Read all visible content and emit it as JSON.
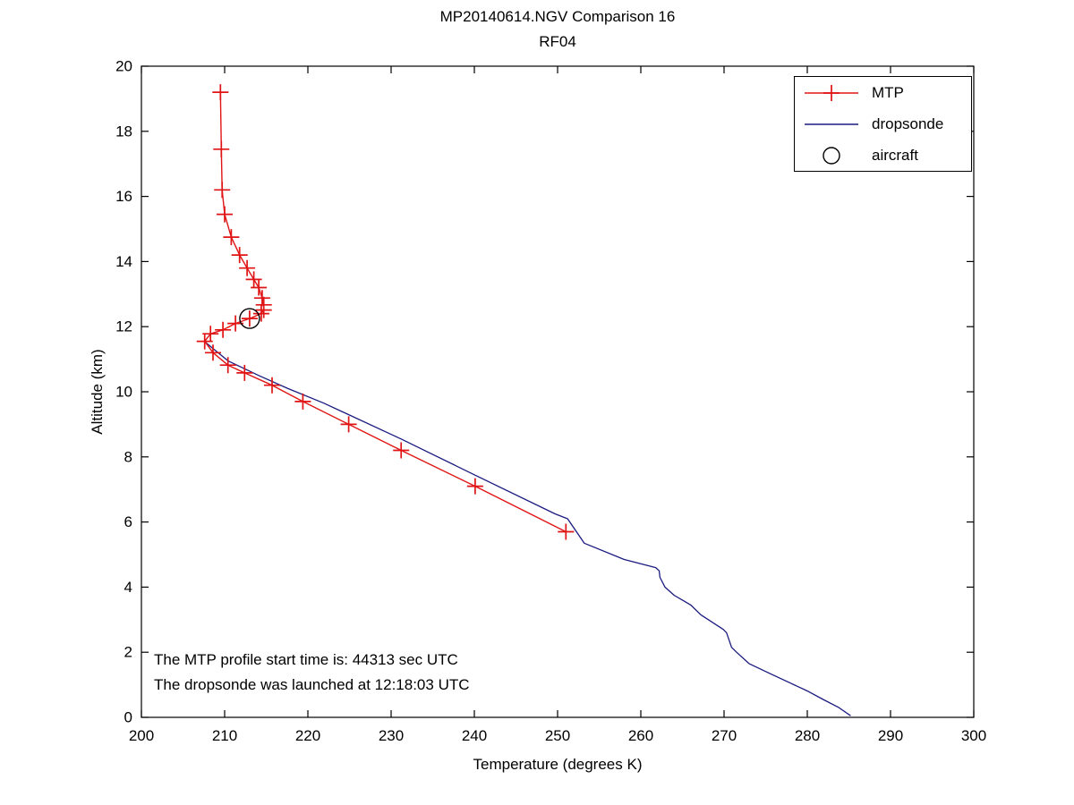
{
  "figure": {
    "title_line1": "MP20140614.NGV Comparison 16",
    "title_line2": "RF04",
    "annotations": [
      "The MTP profile start time is: 44313 sec UTC",
      "The dropsonde was launched at 12:18:03 UTC"
    ]
  },
  "legend": {
    "items": [
      {
        "label": "MTP",
        "swatch": "line-plus",
        "color": "#e01414"
      },
      {
        "label": "dropsonde",
        "swatch": "line",
        "color": "#1a1a80"
      },
      {
        "label": "aircraft",
        "swatch": "circle",
        "color": "#000000"
      }
    ]
  },
  "chart_data": {
    "type": "line",
    "title": "MP20140614.NGV Comparison 16 — RF04",
    "xlabel": "Temperature (degrees K)",
    "ylabel": "Altitude (km)",
    "xlim": [
      200,
      300
    ],
    "ylim": [
      0,
      20
    ],
    "xticks": [
      200,
      210,
      220,
      230,
      240,
      250,
      260,
      270,
      280,
      290,
      300
    ],
    "yticks": [
      0,
      2,
      4,
      6,
      8,
      10,
      12,
      14,
      16,
      18,
      20
    ],
    "grid": false,
    "legend_position": "upper-right",
    "series": [
      {
        "name": "MTP",
        "color": "#e01414",
        "marker": "plus",
        "points": [
          [
            209.5,
            19.2
          ],
          [
            209.6,
            17.45
          ],
          [
            209.7,
            16.2
          ],
          [
            210.0,
            15.45
          ],
          [
            210.8,
            14.75
          ],
          [
            211.8,
            14.2
          ],
          [
            212.7,
            13.8
          ],
          [
            213.5,
            13.45
          ],
          [
            214.1,
            13.2
          ],
          [
            214.5,
            12.88
          ],
          [
            214.7,
            12.67
          ],
          [
            214.7,
            12.51
          ],
          [
            214.4,
            12.4
          ],
          [
            213.0,
            12.25
          ],
          [
            211.3,
            12.1
          ],
          [
            209.8,
            11.9
          ],
          [
            208.3,
            11.78
          ],
          [
            207.6,
            11.55
          ],
          [
            208.6,
            11.2
          ],
          [
            210.4,
            10.82
          ],
          [
            212.4,
            10.58
          ],
          [
            215.7,
            10.2
          ],
          [
            219.4,
            9.7
          ],
          [
            224.9,
            9.0
          ],
          [
            231.2,
            8.2
          ],
          [
            240.1,
            7.1
          ],
          [
            251.0,
            5.7
          ]
        ]
      },
      {
        "name": "dropsonde",
        "color": "#1a1a80",
        "marker": "none",
        "points": [
          [
            207.7,
            11.52
          ],
          [
            210.4,
            10.95
          ],
          [
            214.1,
            10.5
          ],
          [
            217.6,
            10.1
          ],
          [
            221.9,
            9.65
          ],
          [
            231.2,
            8.55
          ],
          [
            240.0,
            7.45
          ],
          [
            249.7,
            6.25
          ],
          [
            251.2,
            6.1
          ],
          [
            253.2,
            5.35
          ],
          [
            258.0,
            4.85
          ],
          [
            261.8,
            4.6
          ],
          [
            262.2,
            4.5
          ],
          [
            262.3,
            4.3
          ],
          [
            262.9,
            4.0
          ],
          [
            264.0,
            3.75
          ],
          [
            266.0,
            3.45
          ],
          [
            267.2,
            3.15
          ],
          [
            269.9,
            2.7
          ],
          [
            270.3,
            2.6
          ],
          [
            270.9,
            2.15
          ],
          [
            271.5,
            2.0
          ],
          [
            273.0,
            1.65
          ],
          [
            275.5,
            1.35
          ],
          [
            278.0,
            1.05
          ],
          [
            280.1,
            0.8
          ],
          [
            281.9,
            0.55
          ],
          [
            283.8,
            0.3
          ],
          [
            285.2,
            0.05
          ]
        ]
      }
    ],
    "aircraft_point": {
      "temp": 213.0,
      "alt": 12.25
    }
  }
}
